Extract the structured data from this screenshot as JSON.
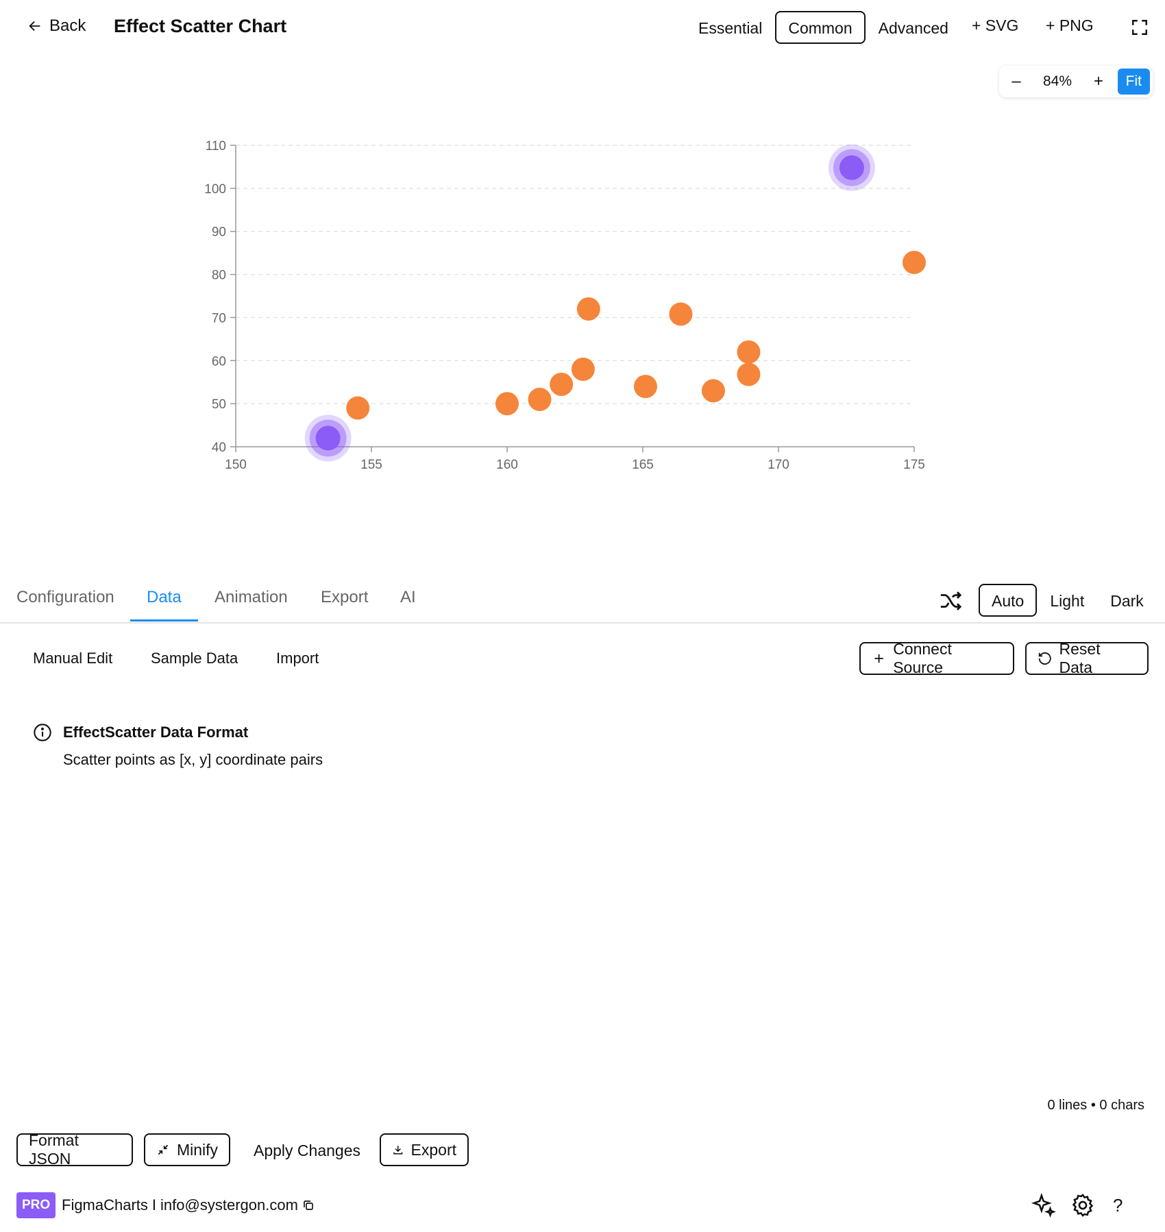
{
  "header": {
    "back_label": "Back",
    "title": "Effect Scatter Chart",
    "levels": [
      "Essential",
      "Common",
      "Advanced"
    ],
    "active_level": "Common",
    "add_svg": "+ SVG",
    "add_png": "+ PNG"
  },
  "zoom": {
    "minus": "–",
    "value": "84%",
    "plus": "+",
    "fit": "Fit"
  },
  "chart_data": {
    "type": "scatter",
    "x_ticks": [
      150,
      155,
      160,
      165,
      170,
      175
    ],
    "y_ticks": [
      40,
      50,
      60,
      70,
      80,
      90,
      100,
      110
    ],
    "xlim": [
      150,
      175
    ],
    "ylim": [
      40,
      110
    ],
    "grid": true,
    "points": [
      [
        154.5,
        49
      ],
      [
        160,
        50
      ],
      [
        161.2,
        51
      ],
      [
        162,
        54.5
      ],
      [
        162.8,
        58
      ],
      [
        163,
        72
      ],
      [
        165.1,
        54
      ],
      [
        166.4,
        70.8
      ],
      [
        167.6,
        53
      ],
      [
        168.9,
        62
      ],
      [
        168.9,
        56.8
      ],
      [
        175,
        82.8
      ]
    ],
    "effect_points": [
      [
        153.4,
        42
      ],
      [
        172.7,
        104.8
      ]
    ],
    "colors": {
      "point": "#f5853a",
      "effect": "#8b5cf6",
      "axis": "#999999",
      "grid": "#e3e3e3"
    }
  },
  "tabs": [
    "Configuration",
    "Data",
    "Animation",
    "Export",
    "AI"
  ],
  "active_tab": "Data",
  "themes": [
    "Auto",
    "Light",
    "Dark"
  ],
  "active_theme": "Auto",
  "subtabs": [
    "Manual Edit",
    "Sample Data",
    "Import"
  ],
  "connect_source": "Connect Source",
  "reset_data": "Reset Data",
  "info": {
    "title": "EffectScatter Data Format",
    "description": "Scatter points as [x, y] coordinate pairs"
  },
  "counts": "0 lines • 0 chars",
  "actions": {
    "format_json": "Format JSON",
    "minify": "Minify",
    "apply_changes": "Apply Changes",
    "export": "Export"
  },
  "footer": {
    "badge": "PRO",
    "brand": "FigmaCharts",
    "separator": "I",
    "email": "info@systergon.com",
    "help": "?"
  },
  "colors": {
    "accent": "#1a8cf0",
    "pro": "#8b5cf6"
  }
}
